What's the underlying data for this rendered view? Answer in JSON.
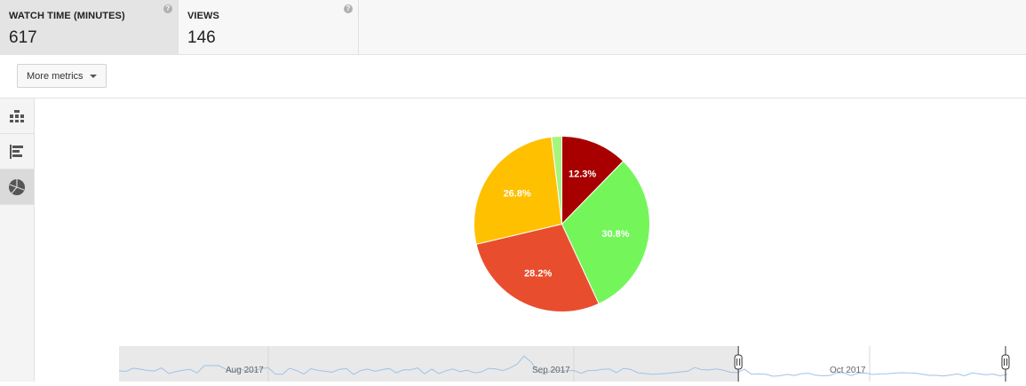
{
  "metrics": [
    {
      "label": "WATCH TIME (MINUTES)",
      "value": "617",
      "selected": true
    },
    {
      "label": "VIEWS",
      "value": "146",
      "selected": false
    }
  ],
  "help_icon_glyph": "?",
  "toolbar": {
    "more_metrics_label": "More metrics"
  },
  "side_rail": {
    "buttons": [
      {
        "icon": "table-view-icon",
        "active": false
      },
      {
        "icon": "bar-chart-view-icon",
        "active": false
      },
      {
        "icon": "pie-chart-view-icon",
        "active": true
      }
    ]
  },
  "chart_data": {
    "type": "pie",
    "title": "",
    "slices": [
      {
        "value": 12.3,
        "label": "12.3%",
        "color": "#a80000"
      },
      {
        "value": 30.8,
        "label": "30.8%",
        "color": "#74f65a"
      },
      {
        "value": 28.2,
        "label": "28.2%",
        "color": "#e84e2e"
      },
      {
        "value": 26.8,
        "label": "26.8%",
        "color": "#ffc000"
      },
      {
        "value": 1.9,
        "label": "",
        "color": "#a7f47d"
      }
    ]
  },
  "timeline": {
    "month_labels": [
      "Aug 2017",
      "Sep 2017",
      "Oct 2017"
    ],
    "selection_start_fraction": 0.693,
    "selection_end_fraction": 0.992
  }
}
